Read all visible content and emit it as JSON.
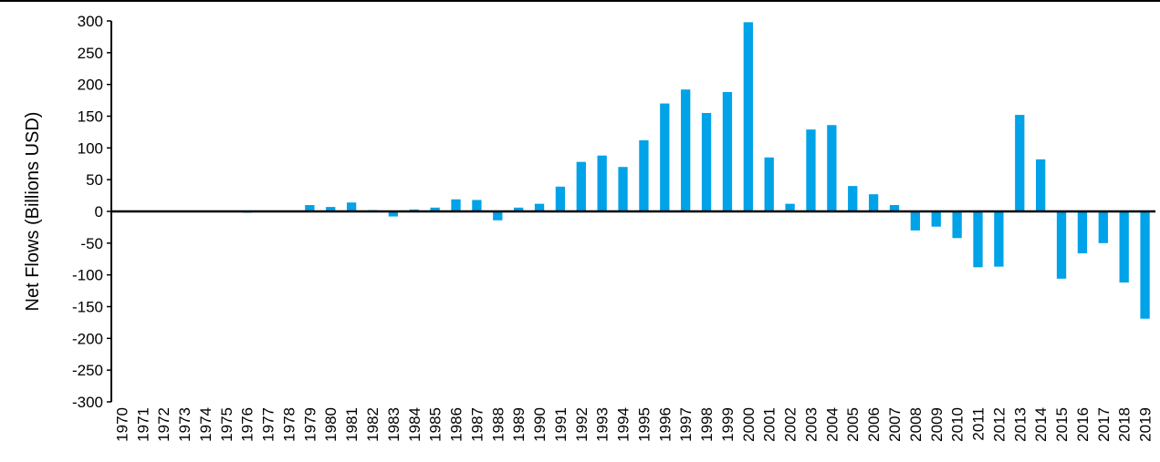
{
  "chart_data": {
    "type": "bar",
    "title": "",
    "xlabel": "",
    "ylabel": "Net  Flows (Billions USD)",
    "ylim": [
      -300,
      300
    ],
    "yticks": [
      300,
      250,
      200,
      150,
      100,
      50,
      0,
      -50,
      -100,
      -150,
      -200,
      -250,
      -300
    ],
    "grid": false,
    "bar_color": "#00a2e8",
    "categories": [
      "1970",
      "1971",
      "1972",
      "1973",
      "1974",
      "1975",
      "1976",
      "1977",
      "1978",
      "1979",
      "1980",
      "1981",
      "1982",
      "1983",
      "1984",
      "1985",
      "1986",
      "1987",
      "1988",
      "1989",
      "1990",
      "1991",
      "1992",
      "1993",
      "1994",
      "1995",
      "1996",
      "1997",
      "1998",
      "1999",
      "2000",
      "2001",
      "2002",
      "2003",
      "2004",
      "2005",
      "2006",
      "2007",
      "2008",
      "2009",
      "2010",
      "2011",
      "2012",
      "2013",
      "2014",
      "2015",
      "2016",
      "2017",
      "2018",
      "2019"
    ],
    "values": [
      0,
      0,
      0,
      0,
      0,
      0,
      -2,
      0,
      0,
      10,
      7,
      14,
      2,
      -8,
      3,
      6,
      19,
      18,
      -14,
      6,
      12,
      39,
      78,
      88,
      70,
      112,
      170,
      192,
      155,
      188,
      298,
      85,
      12,
      129,
      136,
      40,
      27,
      10,
      -30,
      -24,
      -42,
      -88,
      -87,
      152,
      82,
      -106,
      -66,
      -50,
      -112,
      -169
    ]
  }
}
